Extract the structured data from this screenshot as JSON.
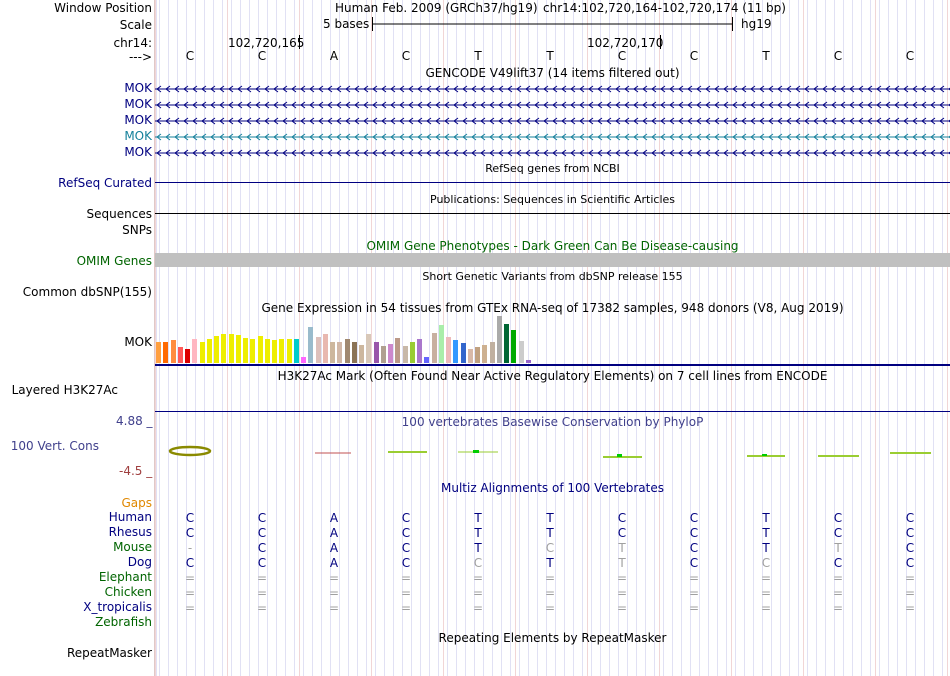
{
  "colors": {
    "navy": "#000080",
    "dark_green": "#006400",
    "teal": "#15819b",
    "phylop_blue": "#40408c",
    "phylop_red": "#a04040",
    "gaps_orange": "#e08800",
    "grey_light": "#a0a0a0",
    "omim_bar": "#c0c0c0"
  },
  "header": {
    "window_position_label": "Window Position",
    "assembly_text": "Human Feb. 2009 (GRCh37/hg19)",
    "position_text": "chr14:102,720,164-102,720,174 (11 bp)",
    "scale_label": "Scale",
    "scale_text": "5 bases",
    "scale_assembly": "hg19",
    "chrom_label": "chr14:",
    "coord_1": "102,720,165",
    "coord_2": "102,720,170",
    "strand_label": "--->"
  },
  "sequence": [
    "C",
    "C",
    "A",
    "C",
    "T",
    "T",
    "C",
    "C",
    "T",
    "C",
    "C"
  ],
  "gencode": {
    "title": "GENCODE V49lift37 (14 items filtered out)",
    "rows": [
      {
        "label": "MOK",
        "color": "#000080"
      },
      {
        "label": "MOK",
        "color": "#000080"
      },
      {
        "label": "MOK",
        "color": "#000080"
      },
      {
        "label": "MOK",
        "color": "#15819b"
      },
      {
        "label": "MOK",
        "color": "#000080"
      }
    ]
  },
  "refseq": {
    "title": "RefSeq genes from NCBI",
    "label": "RefSeq Curated"
  },
  "publications": {
    "title": "Publications: Sequences in Scientific Articles",
    "label": "Sequences"
  },
  "snps_label": "SNPs",
  "omim": {
    "title": "OMIM Gene Phenotypes - Dark Green Can Be Disease-causing",
    "label": "OMIM Genes"
  },
  "dbsnp": {
    "title": "Short Genetic Variants from dbSNP release 155",
    "label": "Common dbSNP(155)"
  },
  "gtex": {
    "title": "Gene Expression in 54 tissues from GTEx RNA-seq of 17382 samples, 948 donors (V8, Aug 2019)",
    "label": "MOK",
    "bars": [
      {
        "v": 0.44,
        "c": "#ff9f3f"
      },
      {
        "v": 0.44,
        "c": "#ff6a00"
      },
      {
        "v": 0.48,
        "c": "#ff8c40"
      },
      {
        "v": 0.34,
        "c": "#ff5a5a"
      },
      {
        "v": 0.3,
        "c": "#dd0000"
      },
      {
        "v": 0.5,
        "c": "#ffb6c1"
      },
      {
        "v": 0.44,
        "c": "#eeee00"
      },
      {
        "v": 0.52,
        "c": "#eeee00"
      },
      {
        "v": 0.58,
        "c": "#eeee00"
      },
      {
        "v": 0.62,
        "c": "#eeee00"
      },
      {
        "v": 0.62,
        "c": "#eeee00"
      },
      {
        "v": 0.6,
        "c": "#eeee00"
      },
      {
        "v": 0.54,
        "c": "#eeee00"
      },
      {
        "v": 0.52,
        "c": "#eeee00"
      },
      {
        "v": 0.58,
        "c": "#eeee00"
      },
      {
        "v": 0.5,
        "c": "#eeee00"
      },
      {
        "v": 0.48,
        "c": "#eeee00"
      },
      {
        "v": 0.52,
        "c": "#eeee00"
      },
      {
        "v": 0.5,
        "c": "#eeee00"
      },
      {
        "v": 0.5,
        "c": "#00cccc"
      },
      {
        "v": 0.12,
        "c": "#ff66ff"
      },
      {
        "v": 0.76,
        "c": "#99bbcc"
      },
      {
        "v": 0.56,
        "c": "#ddc0bb"
      },
      {
        "v": 0.62,
        "c": "#e8b8b0"
      },
      {
        "v": 0.44,
        "c": "#cdb79e"
      },
      {
        "v": 0.44,
        "c": "#d2b8a8"
      },
      {
        "v": 0.52,
        "c": "#a08870"
      },
      {
        "v": 0.44,
        "c": "#8b7355"
      },
      {
        "v": 0.38,
        "c": "#cdb79e"
      },
      {
        "v": 0.62,
        "c": "#d8c8b8"
      },
      {
        "v": 0.44,
        "c": "#9955aa"
      },
      {
        "v": 0.36,
        "c": "#b0a090"
      },
      {
        "v": 0.4,
        "c": "#cc88cc"
      },
      {
        "v": 0.54,
        "c": "#bb9988"
      },
      {
        "v": 0.36,
        "c": "#c8b8a8"
      },
      {
        "v": 0.44,
        "c": "#99cc33"
      },
      {
        "v": 0.52,
        "c": "#aa77cc"
      },
      {
        "v": 0.12,
        "c": "#6666ff"
      },
      {
        "v": 0.64,
        "c": "#c8b0a0"
      },
      {
        "v": 0.8,
        "c": "#aaeeaa"
      },
      {
        "v": 0.56,
        "c": "#eebbbb"
      },
      {
        "v": 0.48,
        "c": "#3399ff"
      },
      {
        "v": 0.42,
        "c": "#3366cc"
      },
      {
        "v": 0.3,
        "c": "#d8b8a8"
      },
      {
        "v": 0.34,
        "c": "#c0a080"
      },
      {
        "v": 0.38,
        "c": "#cdb090"
      },
      {
        "v": 0.44,
        "c": "#c0b0a0"
      },
      {
        "v": 1.0,
        "c": "#aaaaaa"
      },
      {
        "v": 0.82,
        "c": "#006633"
      },
      {
        "v": 0.7,
        "c": "#00aa00"
      },
      {
        "v": 0.46,
        "c": "#cccccc"
      },
      {
        "v": 0.06,
        "c": "#9966cc"
      }
    ]
  },
  "h3k27ac": {
    "title": "H3K27Ac Mark (Often Found Near Active Regulatory Elements) on 7 cell lines from ENCODE",
    "label": "Layered H3K27Ac"
  },
  "phylop": {
    "title": "100 vertebrates Basewise Conservation by PhyloP",
    "label": "100 Vert. Cons",
    "top_value": "4.88 _",
    "bottom_value": "-4.5 _"
  },
  "gaps_label": "Gaps",
  "multiz": {
    "title": "Multiz Alignments of 100 Vertebrates",
    "rows": [
      {
        "species": "Human",
        "color": "#000080",
        "bases": [
          "C",
          "C",
          "A",
          "C",
          "T",
          "T",
          "C",
          "C",
          "T",
          "C",
          "C"
        ],
        "muted": []
      },
      {
        "species": "Rhesus",
        "color": "#000080",
        "bases": [
          "C",
          "C",
          "A",
          "C",
          "T",
          "T",
          "C",
          "C",
          "T",
          "C",
          "C"
        ],
        "muted": []
      },
      {
        "species": "Mouse",
        "color": "#006400",
        "bases": [
          "-",
          "C",
          "A",
          "C",
          "T",
          "C",
          "T",
          "C",
          "T",
          "T",
          "C"
        ],
        "muted": [
          0,
          5,
          6,
          9
        ]
      },
      {
        "species": "Dog",
        "color": "#000080",
        "bases": [
          "C",
          "C",
          "A",
          "C",
          "C",
          "T",
          "T",
          "C",
          "C",
          "C",
          "C"
        ],
        "muted": [
          4,
          6,
          8
        ]
      },
      {
        "species": "Elephant",
        "color": "#006400",
        "bases": [
          "=",
          "=",
          "=",
          "=",
          "=",
          "=",
          "=",
          "=",
          "=",
          "=",
          "="
        ],
        "muted": [
          0,
          1,
          2,
          3,
          4,
          5,
          6,
          7,
          8,
          9,
          10
        ]
      },
      {
        "species": "Chicken",
        "color": "#006400",
        "bases": [
          "=",
          "=",
          "=",
          "=",
          "=",
          "=",
          "=",
          "=",
          "=",
          "=",
          "="
        ],
        "muted": [
          0,
          1,
          2,
          3,
          4,
          5,
          6,
          7,
          8,
          9,
          10
        ]
      },
      {
        "species": "X_tropicalis",
        "color": "#000080",
        "bases": [
          "=",
          "=",
          "=",
          "=",
          "=",
          "=",
          "=",
          "=",
          "=",
          "=",
          "="
        ],
        "muted": [
          0,
          1,
          2,
          3,
          4,
          5,
          6,
          7,
          8,
          9,
          10
        ]
      },
      {
        "species": "Zebrafish",
        "color": "#006400",
        "bases": [
          "",
          "",
          "",
          "",
          "",
          "",
          "",
          "",
          "",
          "",
          ""
        ],
        "muted": []
      }
    ]
  },
  "repeatmasker": {
    "title": "Repeating Elements by RepeatMasker",
    "label": "RepeatMasker"
  }
}
